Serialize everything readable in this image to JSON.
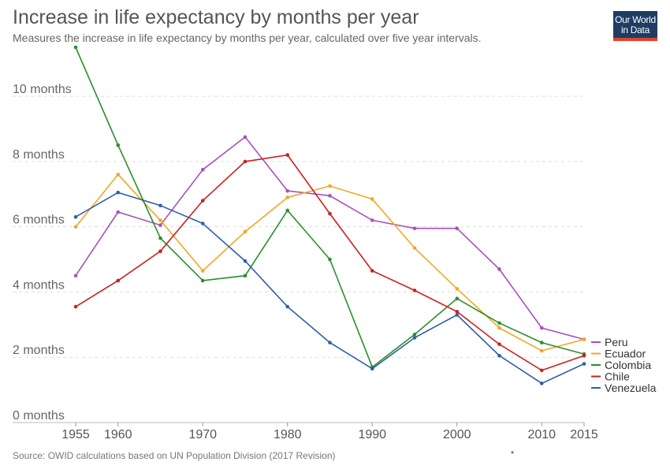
{
  "header": {
    "title": "Increase in life expectancy by months per year",
    "subtitle": "Measures the increase in life expectancy by months per year, calculated over five year intervals."
  },
  "logo": {
    "line1": "Our World",
    "line2": "in Data"
  },
  "footer": {
    "source": "Source: OWID calculations based on UN Population Division (2017 Revision)",
    "dot": "•"
  },
  "colors": {
    "Peru": "#a652ba",
    "Ecuador": "#f5a623",
    "Colombia": "#2b8f2b",
    "Chile": "#cc1f1f",
    "Venezuela": "#2f5ea8"
  },
  "chart_data": {
    "type": "line",
    "title": "Increase in life expectancy by months per year",
    "xlabel": "",
    "ylabel": "",
    "ylim": [
      0,
      11.5
    ],
    "xlim": [
      1955,
      2015
    ],
    "y_ticks": [
      0,
      2,
      4,
      6,
      8,
      10
    ],
    "y_tick_labels": [
      "0 months",
      "2 months",
      "4 months",
      "6 months",
      "8 months",
      "10 months"
    ],
    "x_ticks": [
      1955,
      1960,
      1970,
      1980,
      1990,
      2000,
      2010,
      2015
    ],
    "x_tick_labels": [
      "1955",
      "1960",
      "1970",
      "1980",
      "1990",
      "2000",
      "2010",
      "2015"
    ],
    "grid": "horizontal dashed",
    "legend": "right",
    "x": [
      1955,
      1960,
      1965,
      1970,
      1975,
      1980,
      1985,
      1990,
      1995,
      2000,
      2005,
      2010,
      2015
    ],
    "series": [
      {
        "name": "Peru",
        "values": [
          4.5,
          6.45,
          6.05,
          7.75,
          8.75,
          7.1,
          6.95,
          6.2,
          5.95,
          5.95,
          4.7,
          2.9,
          2.55
        ]
      },
      {
        "name": "Ecuador",
        "values": [
          6.0,
          7.6,
          6.2,
          4.65,
          5.85,
          6.9,
          7.25,
          6.85,
          5.35,
          4.1,
          2.9,
          2.2,
          2.55
        ]
      },
      {
        "name": "Colombia",
        "values": [
          11.5,
          8.5,
          5.65,
          4.35,
          4.5,
          6.5,
          5.0,
          1.7,
          2.7,
          3.8,
          3.05,
          2.45,
          2.1
        ]
      },
      {
        "name": "Chile",
        "values": [
          3.55,
          4.35,
          5.25,
          6.8,
          8.0,
          8.2,
          6.4,
          4.65,
          4.05,
          3.4,
          2.4,
          1.6,
          2.05
        ]
      },
      {
        "name": "Venezuela",
        "values": [
          6.3,
          7.05,
          6.65,
          6.1,
          4.95,
          3.55,
          2.45,
          1.65,
          2.6,
          3.3,
          2.05,
          1.2,
          1.8
        ]
      }
    ]
  }
}
